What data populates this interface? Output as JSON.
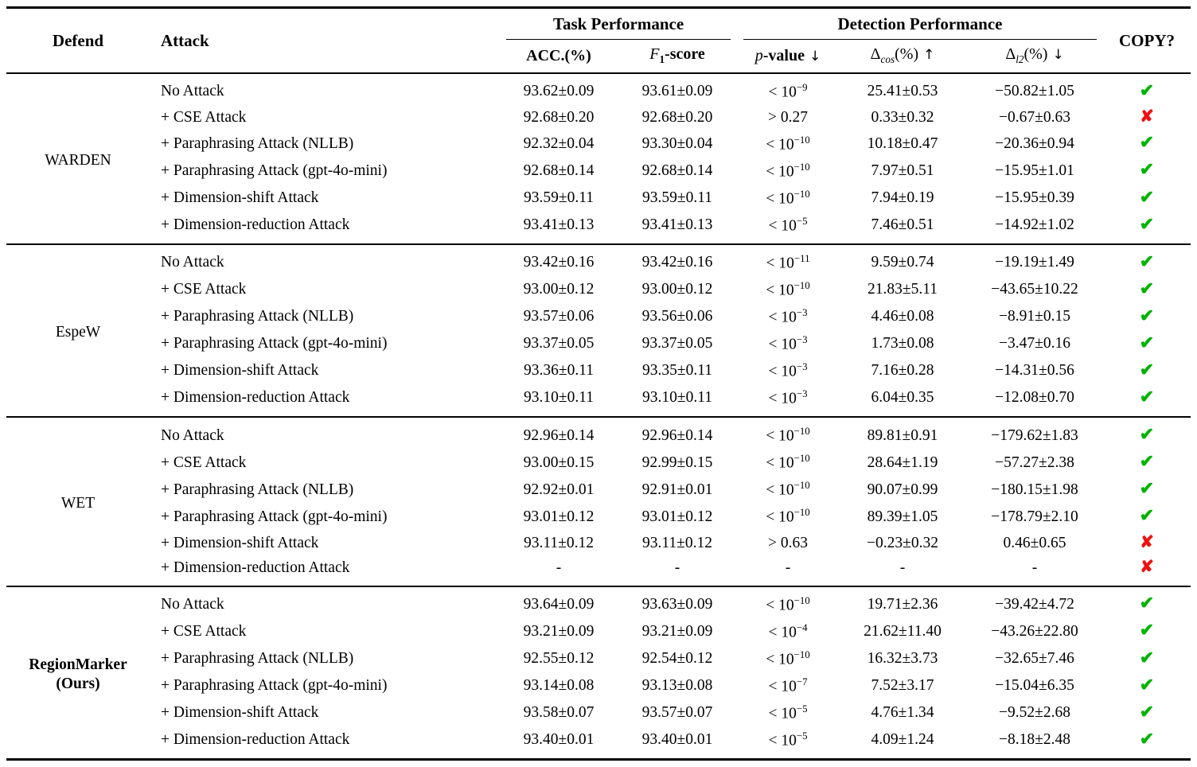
{
  "table": {
    "headers": {
      "defend": "Defend",
      "attack": "Attack",
      "task": "Task Performance",
      "detection": "Detection Performance",
      "copy": "COPY?",
      "acc": "ACC.(%)",
      "f1": {
        "var": "F",
        "sub": "1",
        "rest": "-score"
      },
      "p": {
        "var": "p",
        "rest": "-value",
        "arrow": "↓"
      },
      "dcos": {
        "sym": "Δ",
        "sub": "cos",
        "rest": "(%)",
        "arrow": "↑"
      },
      "dl2": {
        "sym": "Δ",
        "sub": "l2",
        "rest": "(%)",
        "arrow": "↓"
      }
    },
    "symbols": {
      "check": "✔",
      "cross": "✘"
    },
    "colors": {
      "check_green": "#00B300",
      "cross_red": "#EE1111"
    },
    "groups": [
      {
        "defend": [
          "WARDEN"
        ],
        "emphasis": false,
        "rows": [
          {
            "attack": "No Attack",
            "acc": "93.62±0.09",
            "f1": "93.61±0.09",
            "p": "< 10^−9",
            "dcos": "25.41±0.53",
            "dl2": "−50.82±1.05",
            "copy": "yes"
          },
          {
            "attack": "+ CSE Attack",
            "acc": "92.68±0.20",
            "f1": "92.68±0.20",
            "p": "> 0.27",
            "dcos": "0.33±0.32",
            "dl2": "−0.67±0.63",
            "copy": "no"
          },
          {
            "attack": "+ Paraphrasing Attack (NLLB)",
            "acc": "92.32±0.04",
            "f1": "93.30±0.04",
            "p": "< 10^−10",
            "dcos": "10.18±0.47",
            "dl2": "−20.36±0.94",
            "copy": "yes"
          },
          {
            "attack": "+ Paraphrasing Attack (gpt-4o-mini)",
            "acc": "92.68±0.14",
            "f1": "92.68±0.14",
            "p": "< 10^−10",
            "dcos": "7.97±0.51",
            "dl2": "−15.95±1.01",
            "copy": "yes"
          },
          {
            "attack": "+ Dimension-shift Attack",
            "acc": "93.59±0.11",
            "f1": "93.59±0.11",
            "p": "< 10^−10",
            "dcos": "7.94±0.19",
            "dl2": "−15.95±0.39",
            "copy": "yes"
          },
          {
            "attack": "+ Dimension-reduction Attack",
            "acc": "93.41±0.13",
            "f1": "93.41±0.13",
            "p": "< 10^−5",
            "dcos": "7.46±0.51",
            "dl2": "−14.92±1.02",
            "copy": "yes"
          }
        ]
      },
      {
        "defend": [
          "EspeW"
        ],
        "emphasis": false,
        "rows": [
          {
            "attack": "No Attack",
            "acc": "93.42±0.16",
            "f1": "93.42±0.16",
            "p": "< 10^−11",
            "dcos": "9.59±0.74",
            "dl2": "−19.19±1.49",
            "copy": "yes"
          },
          {
            "attack": "+ CSE Attack",
            "acc": "93.00±0.12",
            "f1": "93.00±0.12",
            "p": "< 10^−10",
            "dcos": "21.83±5.11",
            "dl2": "−43.65±10.22",
            "copy": "yes"
          },
          {
            "attack": "+ Paraphrasing Attack (NLLB)",
            "acc": "93.57±0.06",
            "f1": "93.56±0.06",
            "p": "< 10^−3",
            "dcos": "4.46±0.08",
            "dl2": "−8.91±0.15",
            "copy": "yes"
          },
          {
            "attack": "+ Paraphrasing Attack (gpt-4o-mini)",
            "acc": "93.37±0.05",
            "f1": "93.37±0.05",
            "p": "< 10^−3",
            "dcos": "1.73±0.08",
            "dl2": "−3.47±0.16",
            "copy": "yes"
          },
          {
            "attack": "+ Dimension-shift Attack",
            "acc": "93.36±0.11",
            "f1": "93.35±0.11",
            "p": "< 10^−3",
            "dcos": "7.16±0.28",
            "dl2": "−14.31±0.56",
            "copy": "yes"
          },
          {
            "attack": "+ Dimension-reduction Attack",
            "acc": "93.10±0.11",
            "f1": "93.10±0.11",
            "p": "< 10^−3",
            "dcos": "6.04±0.35",
            "dl2": "−12.08±0.70",
            "copy": "yes"
          }
        ]
      },
      {
        "defend": [
          "WET"
        ],
        "emphasis": false,
        "rows": [
          {
            "attack": "No Attack",
            "acc": "92.96±0.14",
            "f1": "92.96±0.14",
            "p": "< 10^−10",
            "dcos": "89.81±0.91",
            "dl2": "−179.62±1.83",
            "copy": "yes"
          },
          {
            "attack": "+ CSE Attack",
            "acc": "93.00±0.15",
            "f1": "92.99±0.15",
            "p": "< 10^−10",
            "dcos": "28.64±1.19",
            "dl2": "−57.27±2.38",
            "copy": "yes"
          },
          {
            "attack": "+ Paraphrasing Attack (NLLB)",
            "acc": "92.92±0.01",
            "f1": "92.91±0.01",
            "p": "< 10^−10",
            "dcos": "90.07±0.99",
            "dl2": "−180.15±1.98",
            "copy": "yes"
          },
          {
            "attack": "+ Paraphrasing Attack (gpt-4o-mini)",
            "acc": "93.01±0.12",
            "f1": "93.01±0.12",
            "p": "< 10^−10",
            "dcos": "89.39±1.05",
            "dl2": "−178.79±2.10",
            "copy": "yes"
          },
          {
            "attack": "+ Dimension-shift Attack",
            "acc": "93.11±0.12",
            "f1": "93.11±0.12",
            "p": "> 0.63",
            "dcos": "−0.23±0.32",
            "dl2": "0.46±0.65",
            "copy": "no"
          },
          {
            "attack": "+ Dimension-reduction Attack",
            "acc": "-",
            "f1": "-",
            "p": "-",
            "dcos": "-",
            "dl2": "-",
            "copy": "no"
          }
        ]
      },
      {
        "defend": [
          "RegionMarker",
          "(Ours)"
        ],
        "emphasis": true,
        "rows": [
          {
            "attack": "No Attack",
            "acc": "93.64±0.09",
            "f1": "93.63±0.09",
            "p": "< 10^−10",
            "dcos": "19.71±2.36",
            "dl2": "−39.42±4.72",
            "copy": "yes"
          },
          {
            "attack": "+ CSE Attack",
            "acc": "93.21±0.09",
            "f1": "93.21±0.09",
            "p": "< 10^−4",
            "dcos": "21.62±11.40",
            "dl2": "−43.26±22.80",
            "copy": "yes"
          },
          {
            "attack": "+ Paraphrasing Attack (NLLB)",
            "acc": "92.55±0.12",
            "f1": "92.54±0.12",
            "p": "< 10^−10",
            "dcos": "16.32±3.73",
            "dl2": "−32.65±7.46",
            "copy": "yes"
          },
          {
            "attack": "+ Paraphrasing Attack (gpt-4o-mini)",
            "acc": "93.14±0.08",
            "f1": "93.13±0.08",
            "p": "< 10^−7",
            "dcos": "7.52±3.17",
            "dl2": "−15.04±6.35",
            "copy": "yes"
          },
          {
            "attack": "+ Dimension-shift Attack",
            "acc": "93.58±0.07",
            "f1": "93.57±0.07",
            "p": "< 10^−5",
            "dcos": "4.76±1.34",
            "dl2": "−9.52±2.68",
            "copy": "yes"
          },
          {
            "attack": "+ Dimension-reduction Attack",
            "acc": "93.40±0.01",
            "f1": "93.40±0.01",
            "p": "< 10^−5",
            "dcos": "4.09±1.24",
            "dl2": "−8.18±2.48",
            "copy": "yes"
          }
        ]
      }
    ]
  }
}
